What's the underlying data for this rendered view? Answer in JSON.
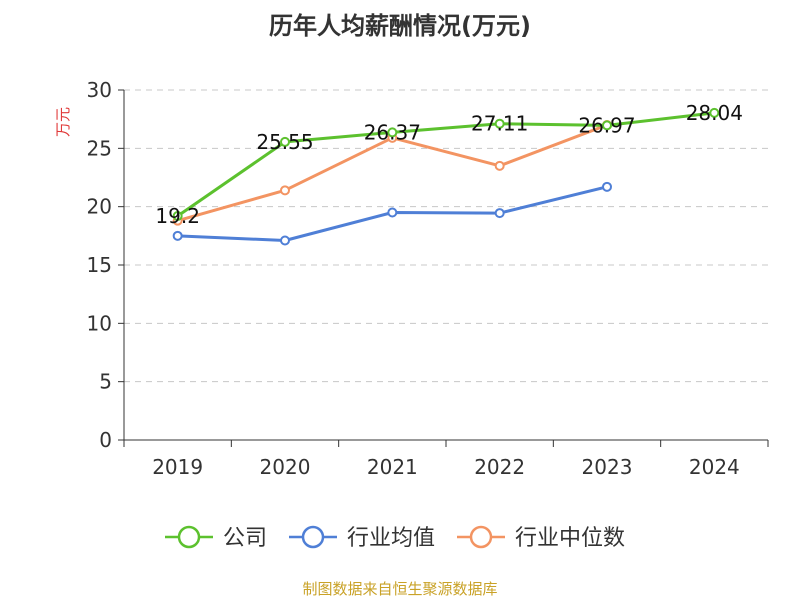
{
  "chart_data": {
    "type": "line",
    "title": "历年人均薪酬情况(万元)",
    "ylabel": "万元",
    "x": [
      "2019",
      "2020",
      "2021",
      "2022",
      "2023",
      "2024"
    ],
    "ylim": [
      0,
      30
    ],
    "yticks": [
      0,
      5,
      10,
      15,
      20,
      25,
      30
    ],
    "grid": true,
    "legend_position": "bottom",
    "series": [
      {
        "name": "公司",
        "color": "#5cc12e",
        "values": [
          19.2,
          25.55,
          26.37,
          27.11,
          26.97,
          28.04
        ],
        "labels": [
          "19.2",
          "25.55",
          "26.37",
          "27.11",
          "26.97",
          "28.04"
        ]
      },
      {
        "name": "行业均值",
        "color": "#4f7fd6",
        "values": [
          17.5,
          17.1,
          19.5,
          19.45,
          21.7,
          null
        ]
      },
      {
        "name": "行业中位数",
        "color": "#f39462",
        "values": [
          18.8,
          21.4,
          25.9,
          23.5,
          27.0,
          null
        ]
      }
    ]
  },
  "footer": {
    "source": "制图数据来自恒生聚源数据库"
  }
}
